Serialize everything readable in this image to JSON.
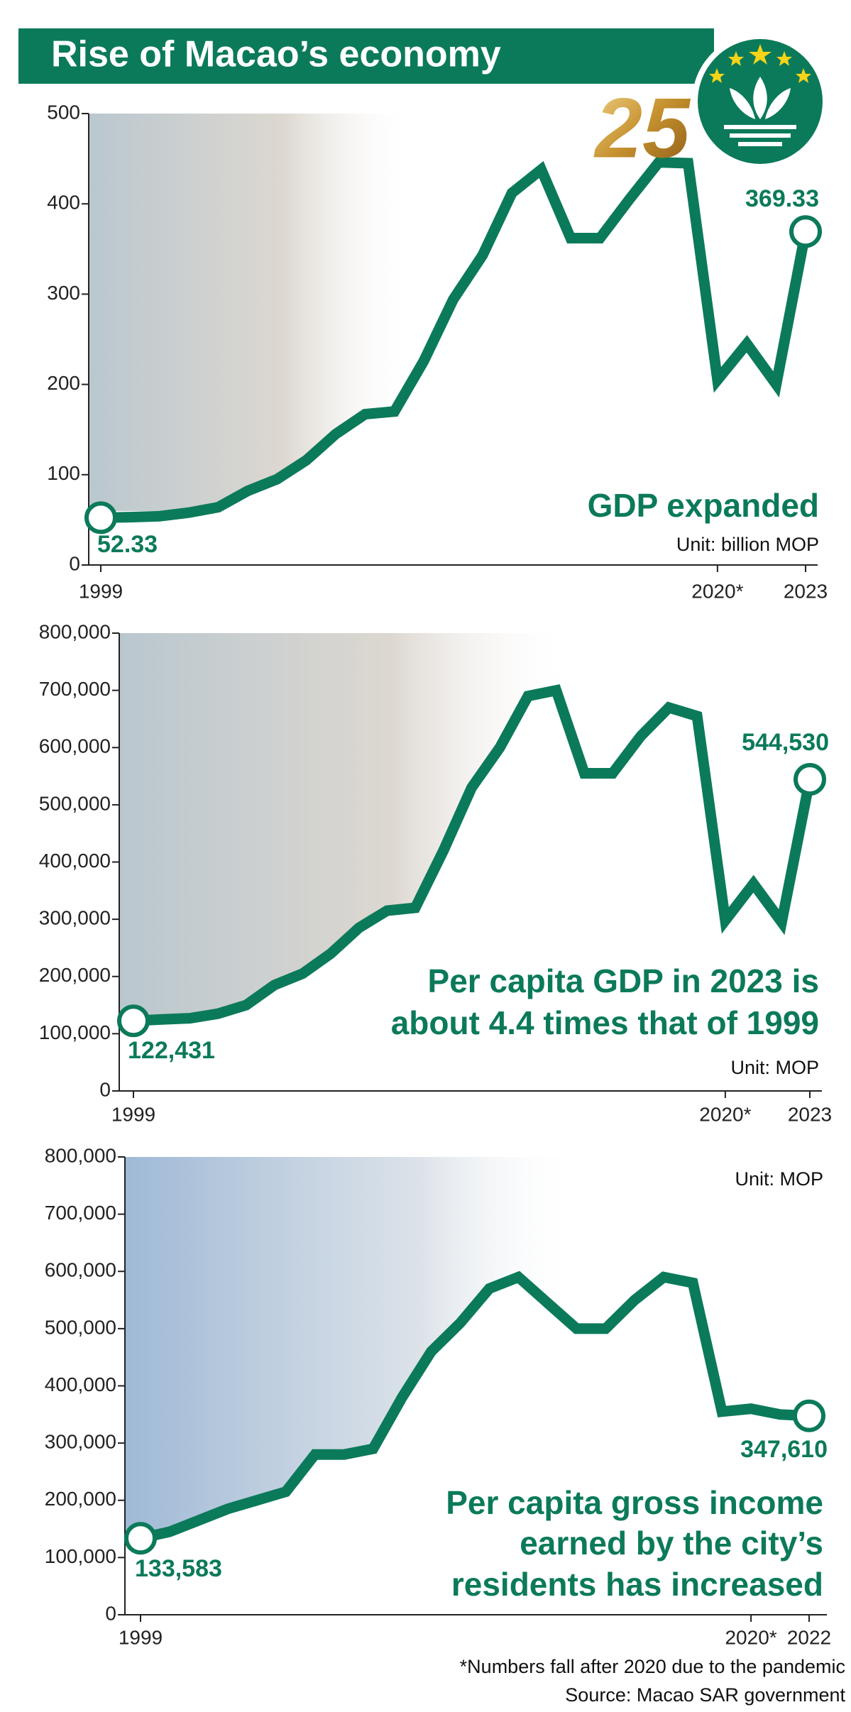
{
  "header": {
    "title": "Rise of Macao’s economy",
    "emblem": "25"
  },
  "chart_data": [
    {
      "type": "line",
      "color": "#0b7a5a",
      "categories": [
        "1999",
        null,
        null,
        null,
        null,
        null,
        null,
        null,
        null,
        null,
        null,
        null,
        null,
        null,
        null,
        null,
        null,
        null,
        null,
        null,
        null,
        "2020*",
        null,
        null,
        "2023"
      ],
      "values": [
        52.33,
        53,
        54,
        58,
        64,
        82,
        95,
        116,
        145,
        167,
        170,
        226,
        294,
        343,
        412,
        438,
        362,
        362,
        405,
        446,
        445,
        205,
        245,
        200,
        369.33
      ],
      "ylim": [
        0,
        500
      ],
      "yticks": [
        0,
        100,
        200,
        300,
        400,
        500
      ],
      "annotation": [
        "GDP expanded"
      ],
      "unit": "Unit: billion MOP"
    },
    {
      "type": "line",
      "color": "#0b7a5a",
      "categories": [
        "1999",
        null,
        null,
        null,
        null,
        null,
        null,
        null,
        null,
        null,
        null,
        null,
        null,
        null,
        null,
        null,
        null,
        null,
        null,
        null,
        null,
        "2020*",
        null,
        null,
        "2023"
      ],
      "values": [
        122431,
        125000,
        127000,
        135000,
        150000,
        185000,
        205000,
        240000,
        285000,
        315000,
        320000,
        420000,
        530000,
        600000,
        690000,
        700000,
        555000,
        555000,
        620000,
        670000,
        655000,
        298000,
        362000,
        295000,
        544530
      ],
      "value_labels": [
        "122,431",
        null,
        null,
        null,
        null,
        null,
        null,
        null,
        null,
        null,
        null,
        null,
        null,
        null,
        null,
        null,
        null,
        null,
        null,
        null,
        null,
        null,
        null,
        null,
        "544,530"
      ],
      "ylim": [
        0,
        800000
      ],
      "yticks": [
        0,
        {
          "value": 100000,
          "label": "100,000"
        },
        {
          "value": 200000,
          "label": "200,000"
        },
        {
          "value": 300000,
          "label": "300,000"
        },
        {
          "value": 400000,
          "label": "400,000"
        },
        {
          "value": 500000,
          "label": "500,000"
        },
        {
          "value": 600000,
          "label": "600,000"
        },
        {
          "value": 700000,
          "label": "700,000"
        },
        {
          "value": 800000,
          "label": "800,000"
        }
      ],
      "annotation": [
        "Per capita GDP in 2023 is",
        "about 4.4 times that of 1999"
      ],
      "unit": "Unit: MOP"
    },
    {
      "type": "line",
      "color": "#0b7a5a",
      "categories": [
        "1999",
        null,
        null,
        null,
        null,
        null,
        null,
        null,
        null,
        null,
        null,
        null,
        null,
        null,
        null,
        null,
        null,
        null,
        null,
        null,
        null,
        "2020*",
        null,
        "2022"
      ],
      "values": [
        133583,
        145000,
        165000,
        185000,
        200000,
        215000,
        280000,
        280000,
        290000,
        380000,
        460000,
        510000,
        570000,
        590000,
        545000,
        500000,
        500000,
        550000,
        590000,
        580000,
        355000,
        360000,
        350000,
        347610
      ],
      "value_labels": [
        "133,583",
        null,
        null,
        null,
        null,
        null,
        null,
        null,
        null,
        null,
        null,
        null,
        null,
        null,
        null,
        null,
        null,
        null,
        null,
        null,
        null,
        null,
        null,
        "347,610"
      ],
      "ylim": [
        0,
        800000
      ],
      "yticks": [
        0,
        {
          "value": 100000,
          "label": "100,000"
        },
        {
          "value": 200000,
          "label": "200,000"
        },
        {
          "value": 300000,
          "label": "300,000"
        },
        {
          "value": 400000,
          "label": "400,000"
        },
        {
          "value": 500000,
          "label": "500,000"
        },
        {
          "value": 600000,
          "label": "600,000"
        },
        {
          "value": 700000,
          "label": "700,000"
        },
        {
          "value": 800000,
          "label": "800,000"
        }
      ],
      "annotation": [
        "Per capita gross income",
        "earned by the city’s",
        "residents has increased"
      ],
      "unit": "Unit: MOP"
    }
  ],
  "footnote": "*Numbers fall after 2020 due to the pandemic",
  "source": "Source: Macao SAR government"
}
